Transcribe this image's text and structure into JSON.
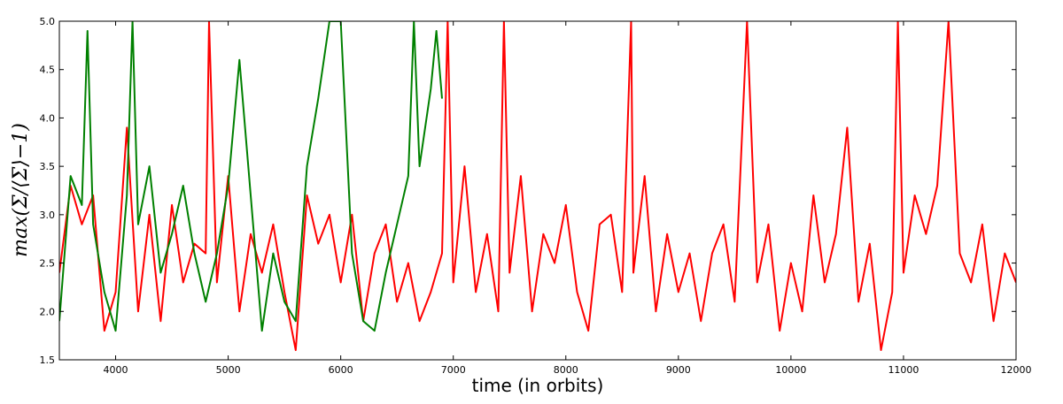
{
  "chart_data": {
    "type": "line",
    "xlabel": "time (in orbits)",
    "ylabel": "max(Σ/⟨Σ⟩−1)",
    "xlim": [
      3500,
      12000
    ],
    "xticks": [
      4000,
      5000,
      6000,
      7000,
      8000,
      9000,
      10000,
      11000,
      12000
    ],
    "ylim": [
      1.5,
      5.0
    ],
    "yticks": [
      1.5,
      {
        "value": 2,
        "label": "2.0"
      },
      2.5,
      {
        "value": 3,
        "label": "3.0"
      },
      3.5,
      {
        "value": 4,
        "label": "4.0"
      },
      4.5,
      {
        "value": 5,
        "label": "5.0"
      }
    ],
    "grid": false,
    "series": [
      {
        "color": "#ff0000",
        "x": [
          3500,
          3600,
          3700,
          3800,
          3900,
          4000,
          4100,
          4200,
          4300,
          4400,
          4500,
          4600,
          4700,
          4800,
          4830,
          4900,
          5000,
          5100,
          5200,
          5300,
          5400,
          5500,
          5600,
          5700,
          5800,
          5900,
          6000,
          6100,
          6200,
          6300,
          6400,
          6500,
          6600,
          6700,
          6800,
          6900,
          6950,
          7000,
          7100,
          7200,
          7300,
          7400,
          7450,
          7500,
          7600,
          7700,
          7800,
          7900,
          8000,
          8100,
          8200,
          8300,
          8400,
          8500,
          8580,
          8600,
          8700,
          8800,
          8900,
          9000,
          9100,
          9200,
          9300,
          9400,
          9500,
          9610,
          9700,
          9800,
          9900,
          10000,
          10100,
          10200,
          10300,
          10400,
          10500,
          10600,
          10700,
          10800,
          10900,
          10950,
          11000,
          11100,
          11200,
          11300,
          11400,
          11500,
          11600,
          11700,
          11800,
          11900,
          12000
        ],
        "values": [
          2.4,
          3.3,
          2.9,
          3.2,
          1.8,
          2.2,
          3.9,
          2.0,
          3.0,
          1.9,
          3.1,
          2.3,
          2.7,
          2.6,
          5.0,
          2.3,
          3.4,
          2.0,
          2.8,
          2.4,
          2.9,
          2.2,
          1.6,
          3.2,
          2.7,
          3.0,
          2.3,
          3.0,
          1.9,
          2.6,
          2.9,
          2.1,
          2.5,
          1.9,
          2.2,
          2.6,
          5.0,
          2.3,
          3.5,
          2.2,
          2.8,
          2.0,
          5.0,
          2.4,
          3.4,
          2.0,
          2.8,
          2.5,
          3.1,
          2.2,
          1.8,
          2.9,
          3.0,
          2.2,
          5.0,
          2.4,
          3.4,
          2.0,
          2.8,
          2.2,
          2.6,
          1.9,
          2.6,
          2.9,
          2.1,
          5.0,
          2.3,
          2.9,
          1.8,
          2.5,
          2.0,
          3.2,
          2.3,
          2.8,
          3.9,
          2.1,
          2.7,
          1.6,
          2.2,
          5.0,
          2.4,
          3.2,
          2.8,
          3.3,
          5.0,
          2.6,
          2.3,
          2.9,
          1.9,
          2.6,
          2.3
        ]
      },
      {
        "color": "#008000",
        "x": [
          3500,
          3600,
          3700,
          3750,
          3800,
          3900,
          4000,
          4100,
          4150,
          4200,
          4300,
          4400,
          4500,
          4600,
          4700,
          4800,
          4900,
          5000,
          5100,
          5200,
          5300,
          5400,
          5500,
          5600,
          5700,
          5800,
          5900,
          6000,
          6100,
          6200,
          6300,
          6400,
          6500,
          6600,
          6650,
          6700,
          6800,
          6850,
          6900
        ],
        "values": [
          1.9,
          3.4,
          3.1,
          4.9,
          2.9,
          2.2,
          1.8,
          3.2,
          5.0,
          2.9,
          3.5,
          2.4,
          2.8,
          3.3,
          2.6,
          2.1,
          2.6,
          3.3,
          4.6,
          3.2,
          1.8,
          2.6,
          2.1,
          1.9,
          3.5,
          4.2,
          5.0,
          5.0,
          2.6,
          1.9,
          1.8,
          2.4,
          2.9,
          3.4,
          5.0,
          3.5,
          4.3,
          4.9,
          4.2
        ]
      }
    ]
  }
}
